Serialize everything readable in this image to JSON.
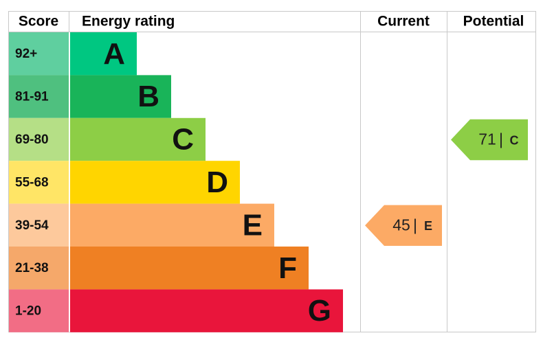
{
  "header": {
    "score": "Score",
    "energy_rating": "Energy rating",
    "current": "Current",
    "potential": "Potential"
  },
  "bands": [
    {
      "score": "92+",
      "letter": "A",
      "color": "#00c781",
      "score_color": "#5fcf9f"
    },
    {
      "score": "81-91",
      "letter": "B",
      "color": "#19b459",
      "score_color": "#4fc07f"
    },
    {
      "score": "69-80",
      "letter": "C",
      "color": "#8dce46",
      "score_color": "#b5df86"
    },
    {
      "score": "55-68",
      "letter": "D",
      "color": "#ffd500",
      "score_color": "#ffe566"
    },
    {
      "score": "39-54",
      "letter": "E",
      "color": "#fcaa65",
      "score_color": "#fdc99c"
    },
    {
      "score": "21-38",
      "letter": "F",
      "color": "#ef8023",
      "score_color": "#f5a86a"
    },
    {
      "score": "1-20",
      "letter": "G",
      "color": "#e9153b",
      "score_color": "#f26d85"
    }
  ],
  "current": {
    "value": 45,
    "separator": "|",
    "rating": "E"
  },
  "potential": {
    "value": 71,
    "separator": "|",
    "rating": "C"
  }
}
